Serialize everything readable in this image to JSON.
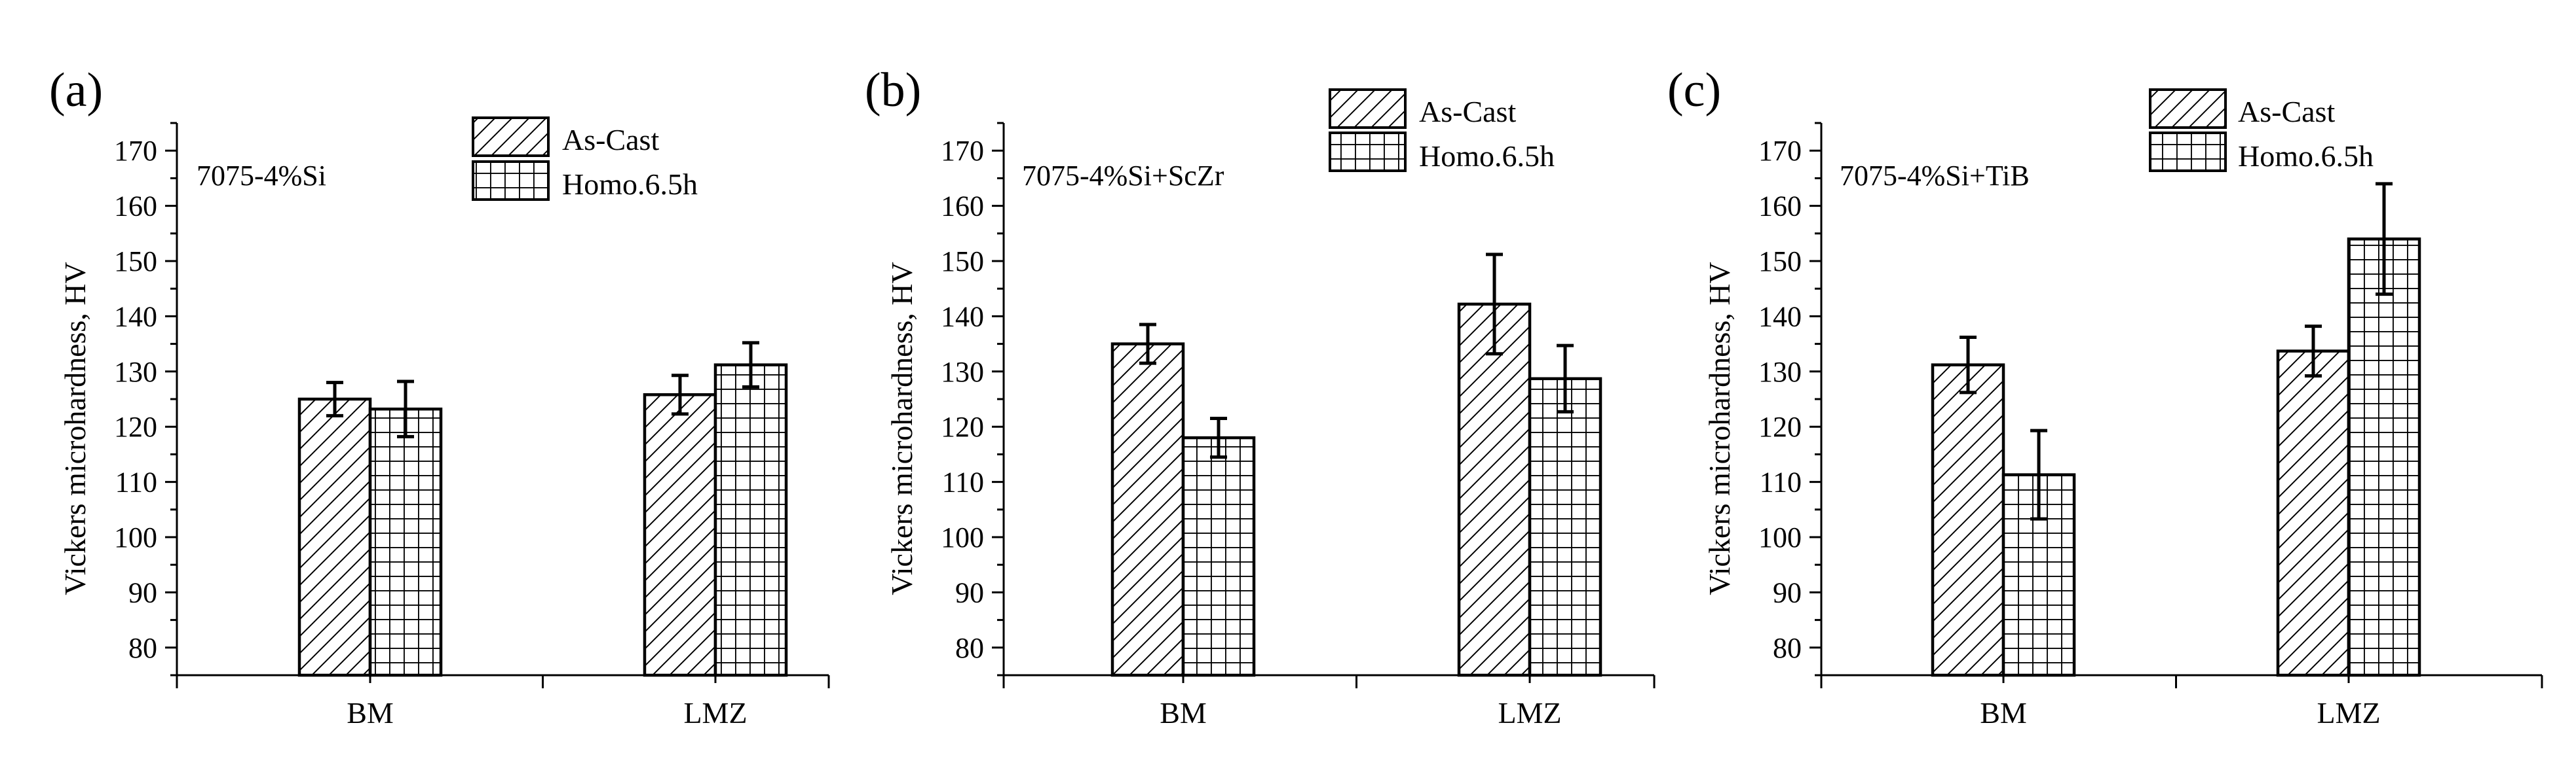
{
  "chart_data": [
    {
      "type": "bar",
      "panel_label": "(a)",
      "annotation": "7075-4%Si",
      "categories": [
        "BM",
        "LMZ"
      ],
      "series": [
        {
          "name": "As-Cast",
          "pattern": "diagonal-hatch",
          "values": [
            125,
            125.8
          ],
          "errors": [
            3,
            3.5
          ]
        },
        {
          "name": "Homo.6.5h",
          "pattern": "grid-hatch",
          "values": [
            123.2,
            131.2
          ],
          "errors": [
            5,
            4
          ]
        }
      ],
      "ylabel": "Vickers microhardness, HV",
      "xlabel": "",
      "ylim": [
        75,
        175
      ],
      "yticks": [
        80,
        90,
        100,
        110,
        120,
        130,
        140,
        150,
        160,
        170
      ],
      "legend_position": "top-center"
    },
    {
      "type": "bar",
      "panel_label": "(b)",
      "annotation": "7075-4%Si+ScZr",
      "categories": [
        "BM",
        "LMZ"
      ],
      "series": [
        {
          "name": "As-Cast",
          "pattern": "diagonal-hatch",
          "values": [
            135,
            142.2
          ],
          "errors": [
            3.5,
            9
          ]
        },
        {
          "name": "Homo.6.5h",
          "pattern": "grid-hatch",
          "values": [
            118,
            128.7
          ],
          "errors": [
            3.5,
            6
          ]
        }
      ],
      "ylabel": "Vickers microhardness, HV",
      "xlabel": "",
      "ylim": [
        75,
        175
      ],
      "yticks": [
        80,
        90,
        100,
        110,
        120,
        130,
        140,
        150,
        160,
        170
      ],
      "legend_position": "top-right"
    },
    {
      "type": "bar",
      "panel_label": "(c)",
      "annotation": "7075-4%Si+TiB",
      "categories": [
        "BM",
        "LMZ"
      ],
      "series": [
        {
          "name": "As-Cast",
          "pattern": "diagonal-hatch",
          "values": [
            131.2,
            133.7
          ],
          "errors": [
            5,
            4.5
          ]
        },
        {
          "name": "Homo.6.5h",
          "pattern": "grid-hatch",
          "values": [
            111.3,
            154
          ],
          "errors": [
            8,
            10
          ]
        }
      ],
      "ylabel": "Vickers microhardness, HV",
      "xlabel": "",
      "ylim": [
        75,
        175
      ],
      "yticks": [
        80,
        90,
        100,
        110,
        120,
        130,
        140,
        150,
        160,
        170
      ],
      "legend_position": "top-right"
    }
  ]
}
